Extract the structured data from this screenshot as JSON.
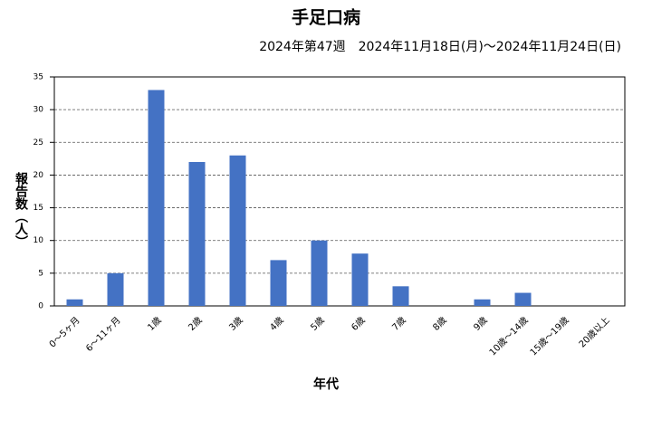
{
  "chart_data": {
    "type": "bar",
    "title": "手足口病",
    "subtitle": "2024年第47週　2024年11月18日(月)～2024年11月24日(日)",
    "x_label": "年代",
    "y_label": "報告数（人）",
    "categories": [
      "0～5ヶ月",
      "6～11ヶ月",
      "1歳",
      "2歳",
      "3歳",
      "4歳",
      "5歳",
      "6歳",
      "7歳",
      "8歳",
      "9歳",
      "10歳～14歳",
      "15歳～19歳",
      "20歳以上"
    ],
    "values": [
      1,
      5,
      33,
      22,
      23,
      7,
      10,
      8,
      3,
      0,
      1,
      2,
      0,
      0
    ],
    "color": "#4472c4",
    "ylim": [
      0,
      35
    ],
    "yticks": [
      0,
      5,
      10,
      15,
      20,
      25,
      30,
      35
    ],
    "grid": true
  }
}
